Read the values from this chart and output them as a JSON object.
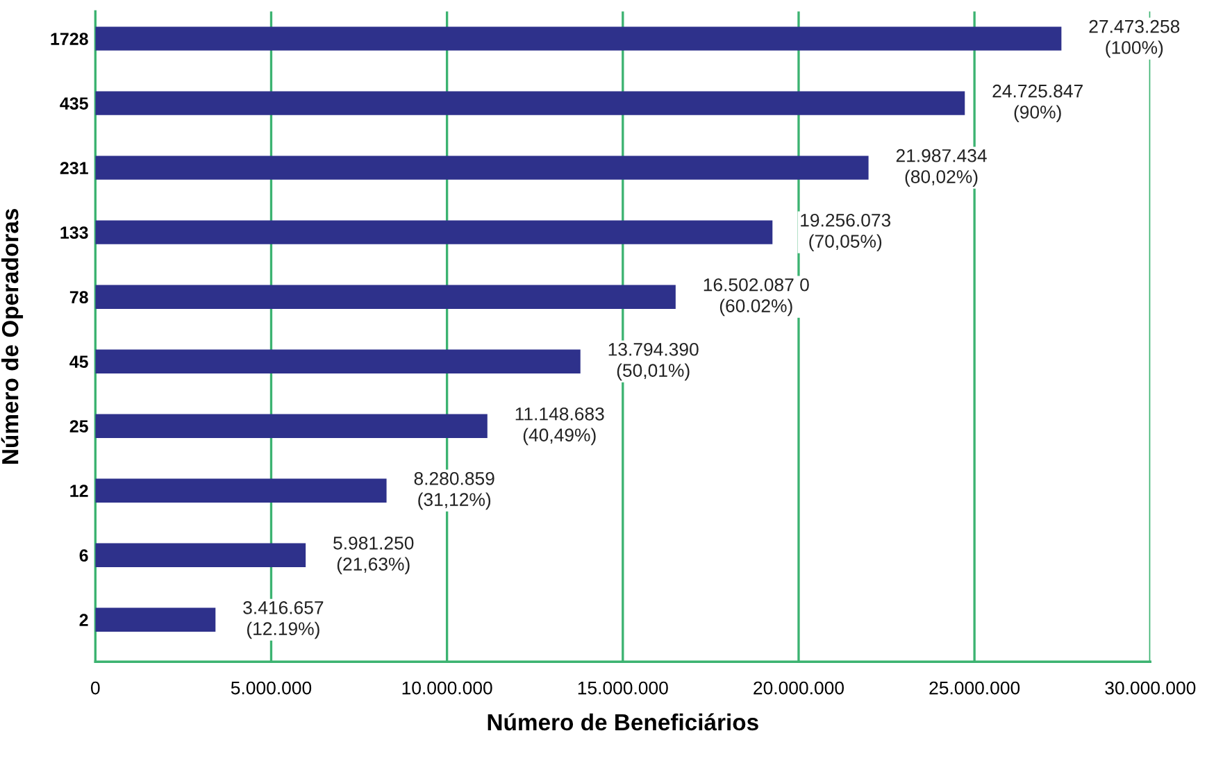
{
  "chart_data": {
    "type": "bar",
    "orientation": "horizontal",
    "xlabel": "Número de Beneficiários",
    "ylabel": "Número de Operadoras",
    "categories": [
      "1728",
      "435",
      "231",
      "133",
      "78",
      "45",
      "25",
      "12",
      "6",
      "2"
    ],
    "values": [
      27473258,
      24725847,
      21987434,
      19256073,
      16502087,
      13794390,
      11148683,
      8280859,
      5981250,
      3416657
    ],
    "value_labels": [
      "27.473.258\n(100%)",
      "24.725.847\n(90%)",
      "21.987.434\n(80,02%)",
      "19.256.073\n(70,05%)",
      "16.502.087 0\n(60.02%)",
      "13.794.390\n(50,01%)",
      "11.148.683\n(40,49%)",
      "8.280.859\n(31,12%)",
      "5.981.250\n(21,63%)",
      "3.416.657\n(12.19%)"
    ],
    "color": "#2e318b",
    "xlim": [
      0,
      30000000
    ],
    "xticks": [
      {
        "value": 0,
        "label": "0"
      },
      {
        "value": 5000000,
        "label": "5.000.000"
      },
      {
        "value": 10000000,
        "label": "10.000.000"
      },
      {
        "value": 15000000,
        "label": "15.000.000"
      },
      {
        "value": 20000000,
        "label": "20.000.000"
      },
      {
        "value": 25000000,
        "label": "25.000.000"
      },
      {
        "value": 30000000,
        "label": "30.000.000"
      }
    ],
    "grid": "x",
    "legend": false
  }
}
